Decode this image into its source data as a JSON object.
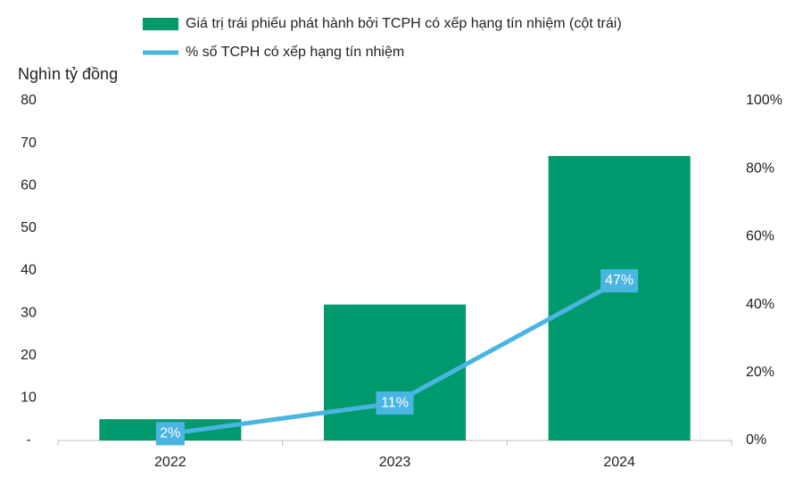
{
  "chart_data": {
    "type": "bar_line",
    "y_axis_label": "Nghìn tỷ đồng",
    "categories": [
      "2022",
      "2023",
      "2024"
    ],
    "series": [
      {
        "name": "Giá trị trái phiếu phát hành bởi TCPH có xếp hạng tín nhiệm (cột trái)",
        "type": "bar",
        "color": "#009a6e",
        "values": [
          5,
          32,
          67
        ]
      },
      {
        "name": "% số TCPH có xếp hạng tín nhiệm",
        "type": "line",
        "axis": "y2",
        "color": "#4ab5e0",
        "values": [
          2,
          11,
          47
        ],
        "value_labels": [
          "2%",
          "11%",
          "47%"
        ]
      }
    ],
    "ylim": [
      0,
      80
    ],
    "yticks": [
      {
        "value": 0,
        "label": "-"
      },
      10,
      20,
      30,
      40,
      50,
      60,
      70,
      80
    ],
    "y2lim": [
      0,
      100
    ],
    "y2ticks": [
      {
        "value": 0,
        "label": "0%"
      },
      {
        "value": 20,
        "label": "20%"
      },
      {
        "value": 40,
        "label": "40%"
      },
      {
        "value": 60,
        "label": "60%"
      },
      {
        "value": 80,
        "label": "80%"
      },
      {
        "value": 100,
        "label": "100%"
      }
    ]
  }
}
